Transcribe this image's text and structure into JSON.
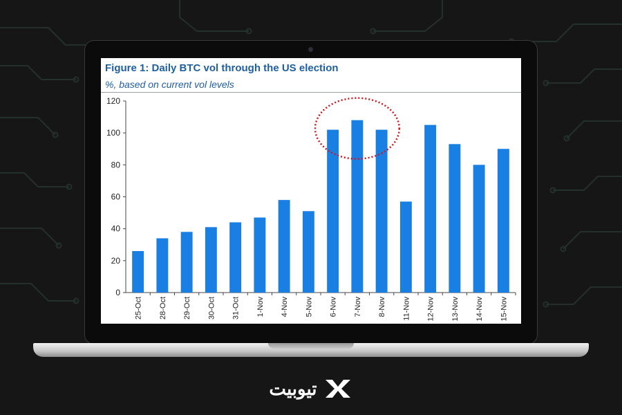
{
  "figure": {
    "title": "Figure 1: Daily BTC vol through the US election",
    "subtitle": "%, based on current vol levels"
  },
  "brand": {
    "logo_text": "تیوبیت",
    "logo_icon": "x-mark-icon"
  },
  "colors": {
    "bar": "#1a7fe3",
    "title": "#1f5fa0",
    "highlight": "#d0161b",
    "background": "#161616"
  },
  "chart_data": {
    "type": "bar",
    "title": "Figure 1: Daily BTC vol through the US election",
    "subtitle": "%, based on current vol levels",
    "xlabel": "",
    "ylabel": "",
    "categories": [
      "25-Oct",
      "28-Oct",
      "29-Oct",
      "30-Oct",
      "31-Oct",
      "1-Nov",
      "4-Nov",
      "5-Nov",
      "6-Nov",
      "7-Nov",
      "8-Nov",
      "11-Nov",
      "12-Nov",
      "13-Nov",
      "14-Nov",
      "15-Nov"
    ],
    "values": [
      26,
      34,
      38,
      41,
      44,
      47,
      58,
      51,
      102,
      108,
      102,
      57,
      105,
      93,
      80,
      90
    ],
    "ylim": [
      0,
      120
    ],
    "yticks": [
      0,
      20,
      40,
      60,
      80,
      100,
      120
    ],
    "grid": false,
    "legend": "none",
    "highlighted_categories": [
      "6-Nov",
      "7-Nov",
      "8-Nov"
    ]
  }
}
